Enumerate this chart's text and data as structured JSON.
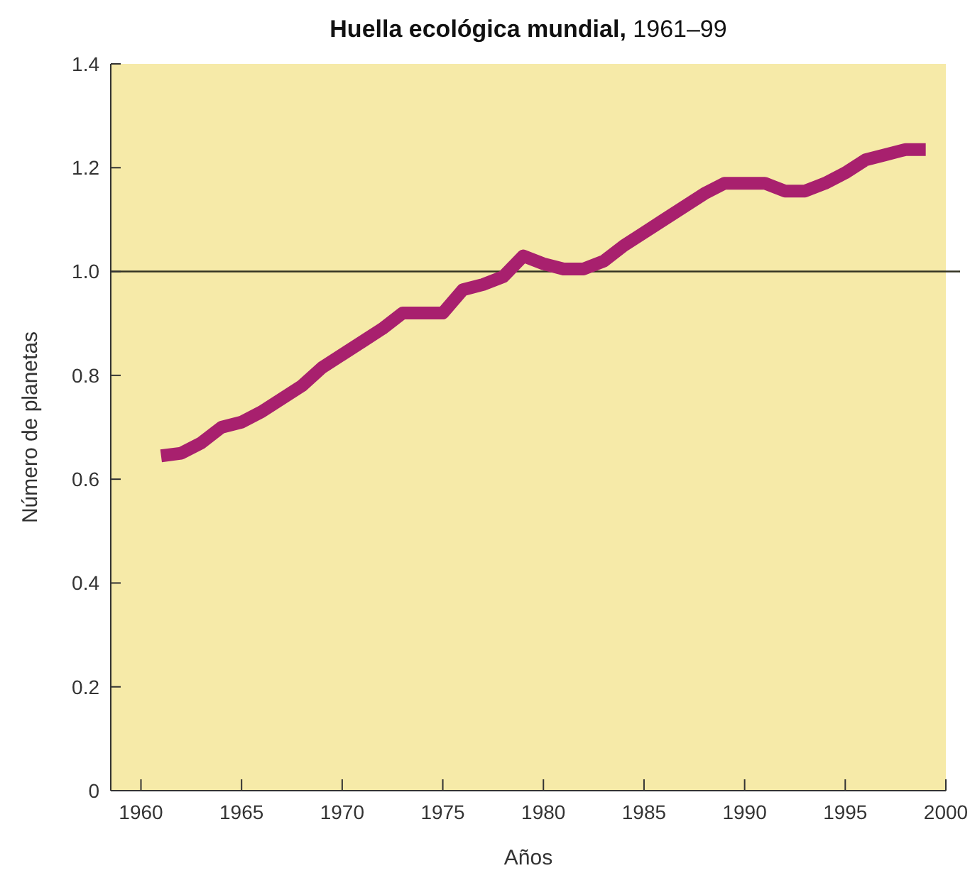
{
  "chart_data": {
    "type": "line",
    "title": "Huella ecológica mundial, 1961–99",
    "xlabel": "Años",
    "ylabel": "Número de planetas",
    "x": [
      1961,
      1962,
      1963,
      1964,
      1965,
      1966,
      1967,
      1968,
      1969,
      1970,
      1971,
      1972,
      1973,
      1974,
      1975,
      1976,
      1977,
      1978,
      1979,
      1980,
      1981,
      1982,
      1983,
      1984,
      1985,
      1986,
      1987,
      1988,
      1989,
      1990,
      1991,
      1992,
      1993,
      1994,
      1995,
      1996,
      1997,
      1998,
      1999
    ],
    "series": [
      {
        "color": "#a8206e",
        "values": [
          0.645,
          0.65,
          0.67,
          0.7,
          0.71,
          0.73,
          0.755,
          0.78,
          0.815,
          0.84,
          0.865,
          0.89,
          0.92,
          0.92,
          0.92,
          0.965,
          0.975,
          0.99,
          1.03,
          1.015,
          1.005,
          1.005,
          1.02,
          1.05,
          1.075,
          1.1,
          1.125,
          1.15,
          1.17,
          1.17,
          1.17,
          1.155,
          1.155,
          1.17,
          1.19,
          1.215,
          1.225,
          1.235,
          1.235
        ]
      }
    ],
    "xlim": [
      1958.5,
      2000
    ],
    "xticks": [
      1960,
      1965,
      1970,
      1975,
      1980,
      1985,
      1990,
      1995,
      2000
    ],
    "ylim": [
      0,
      1.4
    ],
    "yticks": [
      0,
      {
        "value": 0.2,
        "label": "0.2"
      },
      {
        "value": 0.4,
        "label": "0.4"
      },
      {
        "value": 0.6,
        "label": "0.6"
      },
      {
        "value": 0.8,
        "label": "0.8"
      },
      {
        "value": 1,
        "label": "1.0"
      },
      {
        "value": 1.2,
        "label": "1.2"
      },
      {
        "value": 1.4,
        "label": "1.4"
      }
    ],
    "ref_lines": [
      {
        "axis": "y",
        "value": 1,
        "color": "#333322"
      }
    ],
    "grid": false,
    "marker": "none",
    "line_style": "solid"
  }
}
